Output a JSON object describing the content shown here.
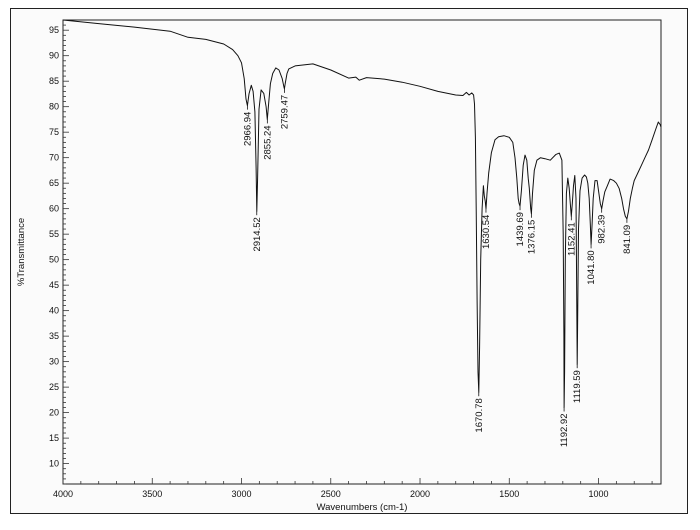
{
  "chart_data": {
    "type": "line",
    "title": "",
    "xlabel": "Wavenumbers (cm-1)",
    "ylabel": "%Transmittance",
    "xlim": [
      4000,
      650
    ],
    "ylim": [
      6,
      97
    ],
    "x_reversed": true,
    "grid": false,
    "x_ticks": [
      4000,
      3500,
      3000,
      2500,
      2000,
      1500,
      1000
    ],
    "y_ticks": [
      10,
      15,
      20,
      25,
      30,
      35,
      40,
      45,
      50,
      55,
      60,
      65,
      70,
      75,
      80,
      85,
      90,
      95
    ],
    "series": [
      {
        "points": [
          [
            4000,
            97
          ],
          [
            3800,
            96.3
          ],
          [
            3600,
            95.6
          ],
          [
            3400,
            94.8
          ],
          [
            3300,
            93.6
          ],
          [
            3200,
            93.2
          ],
          [
            3100,
            92.3
          ],
          [
            3050,
            91.2
          ],
          [
            3020,
            90.0
          ],
          [
            3000,
            88.6
          ],
          [
            2985,
            85.5
          ],
          [
            2975,
            81.5
          ],
          [
            2966.94,
            80.2
          ],
          [
            2958,
            82.5
          ],
          [
            2945,
            84.2
          ],
          [
            2935,
            83.0
          ],
          [
            2925,
            79.0
          ],
          [
            2918,
            68.0
          ],
          [
            2914.52,
            59.5
          ],
          [
            2910,
            66.0
          ],
          [
            2902,
            79.5
          ],
          [
            2890,
            83.3
          ],
          [
            2875,
            82.6
          ],
          [
            2862,
            80.0
          ],
          [
            2855.24,
            77.5
          ],
          [
            2848,
            80.5
          ],
          [
            2838,
            84.5
          ],
          [
            2825,
            86.5
          ],
          [
            2808,
            87.6
          ],
          [
            2790,
            87.2
          ],
          [
            2772,
            85.5
          ],
          [
            2762,
            83.8
          ],
          [
            2759.47,
            83.5
          ],
          [
            2755,
            84.5
          ],
          [
            2745,
            86.5
          ],
          [
            2735,
            87.4
          ],
          [
            2700,
            88.0
          ],
          [
            2600,
            88.4
          ],
          [
            2500,
            87.2
          ],
          [
            2400,
            85.6
          ],
          [
            2360,
            85.8
          ],
          [
            2340,
            85.2
          ],
          [
            2300,
            85.7
          ],
          [
            2200,
            85.4
          ],
          [
            2100,
            84.8
          ],
          [
            2000,
            84.0
          ],
          [
            1900,
            83.0
          ],
          [
            1800,
            82.3
          ],
          [
            1760,
            82.2
          ],
          [
            1740,
            82.8
          ],
          [
            1725,
            82.3
          ],
          [
            1710,
            82.7
          ],
          [
            1700,
            82.3
          ],
          [
            1695,
            80.5
          ],
          [
            1690,
            74.0
          ],
          [
            1685,
            60.0
          ],
          [
            1680,
            42.0
          ],
          [
            1675,
            28.0
          ],
          [
            1670.78,
            24.0
          ],
          [
            1666,
            33.0
          ],
          [
            1660,
            50.0
          ],
          [
            1652,
            60.0
          ],
          [
            1645,
            64.5
          ],
          [
            1640,
            62.5
          ],
          [
            1635,
            61.5
          ],
          [
            1630.54,
            60.0
          ],
          [
            1625,
            63.0
          ],
          [
            1615,
            67.0
          ],
          [
            1600,
            71.0
          ],
          [
            1580,
            73.5
          ],
          [
            1560,
            74.1
          ],
          [
            1530,
            74.3
          ],
          [
            1500,
            74.0
          ],
          [
            1480,
            73.0
          ],
          [
            1468,
            70.0
          ],
          [
            1458,
            66.0
          ],
          [
            1450,
            62.0
          ],
          [
            1445,
            61.0
          ],
          [
            1439.69,
            60.5
          ],
          [
            1432,
            63.5
          ],
          [
            1422,
            68.5
          ],
          [
            1412,
            70.5
          ],
          [
            1402,
            69.5
          ],
          [
            1394,
            66.0
          ],
          [
            1388,
            64.0
          ],
          [
            1380,
            60.0
          ],
          [
            1376.15,
            59.0
          ],
          [
            1370,
            63.0
          ],
          [
            1360,
            67.5
          ],
          [
            1345,
            69.5
          ],
          [
            1325,
            70.0
          ],
          [
            1300,
            69.8
          ],
          [
            1270,
            69.5
          ],
          [
            1240,
            70.6
          ],
          [
            1220,
            70.9
          ],
          [
            1205,
            69.5
          ],
          [
            1198,
            55.0
          ],
          [
            1194,
            35.0
          ],
          [
            1192.92,
            21.0
          ],
          [
            1190,
            28.0
          ],
          [
            1186,
            50.0
          ],
          [
            1180,
            63.0
          ],
          [
            1172,
            66.0
          ],
          [
            1164,
            64.0
          ],
          [
            1158,
            61.0
          ],
          [
            1152.41,
            58.5
          ],
          [
            1147,
            61.0
          ],
          [
            1140,
            64.5
          ],
          [
            1133,
            66.5
          ],
          [
            1126,
            62.0
          ],
          [
            1121,
            38.0
          ],
          [
            1119.59,
            29.5
          ],
          [
            1117,
            37.0
          ],
          [
            1112,
            56.0
          ],
          [
            1104,
            63.5
          ],
          [
            1092,
            66.0
          ],
          [
            1078,
            66.6
          ],
          [
            1068,
            66.2
          ],
          [
            1060,
            65.0
          ],
          [
            1052,
            62.0
          ],
          [
            1046,
            57.0
          ],
          [
            1041.8,
            53.0
          ],
          [
            1036,
            57.0
          ],
          [
            1030,
            62.0
          ],
          [
            1020,
            65.5
          ],
          [
            1008,
            65.5
          ],
          [
            998,
            63.0
          ],
          [
            990,
            61.0
          ],
          [
            982.39,
            60.0
          ],
          [
            975,
            61.5
          ],
          [
            965,
            63.3
          ],
          [
            950,
            64.5
          ],
          [
            935,
            65.8
          ],
          [
            915,
            65.5
          ],
          [
            900,
            65.0
          ],
          [
            885,
            64.0
          ],
          [
            870,
            62.0
          ],
          [
            860,
            60.0
          ],
          [
            850,
            58.5
          ],
          [
            841.09,
            58.0
          ],
          [
            832,
            59.5
          ],
          [
            822,
            62.0
          ],
          [
            810,
            64.0
          ],
          [
            800,
            65.5
          ],
          [
            780,
            67.0
          ],
          [
            760,
            68.5
          ],
          [
            740,
            70.0
          ],
          [
            720,
            71.5
          ],
          [
            700,
            73.5
          ],
          [
            680,
            75.5
          ],
          [
            665,
            77.0
          ],
          [
            655,
            76.5
          ],
          [
            650,
            76.0
          ]
        ]
      }
    ],
    "peak_labels": [
      {
        "x": 2966.94,
        "text": "2966.94"
      },
      {
        "x": 2914.52,
        "text": "2914.52"
      },
      {
        "x": 2855.24,
        "text": "2855.24"
      },
      {
        "x": 2759.47,
        "text": "2759.47"
      },
      {
        "x": 1670.78,
        "text": "1670.78"
      },
      {
        "x": 1630.54,
        "text": "1630.54"
      },
      {
        "x": 1439.69,
        "text": "1439.69"
      },
      {
        "x": 1376.15,
        "text": "1376.15"
      },
      {
        "x": 1192.92,
        "text": "1192.92"
      },
      {
        "x": 1152.41,
        "text": "1152.41"
      },
      {
        "x": 1119.59,
        "text": "1119.59"
      },
      {
        "x": 1041.8,
        "text": "1041.80"
      },
      {
        "x": 982.39,
        "text": "982.39"
      },
      {
        "x": 841.09,
        "text": "841.09"
      }
    ]
  }
}
